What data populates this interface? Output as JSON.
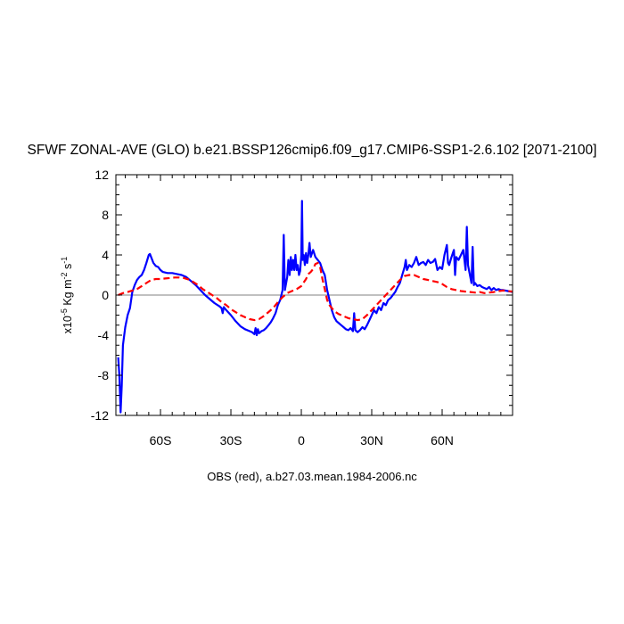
{
  "title": "SFWF ZONAL-AVE (GLO) b.e21.BSSP126cmip6.f09_g17.CMIP6-SSP1-2.6.102 [2071-2100]",
  "footer": "OBS (red), a.b27.03.mean.1984-2006.nc",
  "chart_data": {
    "type": "line",
    "title": "SFWF ZONAL-AVE (GLO) b.e21.BSSP126cmip6.f09_g17.CMIP6-SSP1-2.6.102 [2071-2100]",
    "ylabel": {
      "prefix": "x10",
      "exponent": "-5",
      "units": "Kg m",
      "units_exp": "-2",
      "units_tail": "s",
      "units_tail_exp": "-1"
    },
    "xlim": [
      -79,
      90
    ],
    "ylim": [
      -12,
      12
    ],
    "x_ticks": [
      {
        "value": -60,
        "label": "60S"
      },
      {
        "value": -30,
        "label": "30S"
      },
      {
        "value": 0,
        "label": "0"
      },
      {
        "value": 30,
        "label": "30N"
      },
      {
        "value": 60,
        "label": "60N"
      }
    ],
    "y_ticks": [
      {
        "value": 12,
        "label": "12"
      },
      {
        "value": 8,
        "label": "8"
      },
      {
        "value": 4,
        "label": "4"
      },
      {
        "value": 0,
        "label": "0"
      },
      {
        "value": -4,
        "label": "-4"
      },
      {
        "value": -8,
        "label": "-8"
      },
      {
        "value": -12,
        "label": "-12"
      }
    ],
    "zero_line": true,
    "series": [
      {
        "color": "#0000ff",
        "dash": "solid",
        "points": [
          [
            -78,
            -6.2
          ],
          [
            -77.5,
            -8.0
          ],
          [
            -77,
            -11.7
          ],
          [
            -76.5,
            -9.0
          ],
          [
            -76,
            -5.0
          ],
          [
            -75,
            -3.2
          ],
          [
            -74,
            -2.0
          ],
          [
            -73,
            -1.3
          ],
          [
            -72,
            0.3
          ],
          [
            -71,
            1.0
          ],
          [
            -70,
            1.5
          ],
          [
            -69,
            1.8
          ],
          [
            -68,
            2.0
          ],
          [
            -67,
            2.5
          ],
          [
            -66,
            3.2
          ],
          [
            -65,
            4.0
          ],
          [
            -64.5,
            4.1
          ],
          [
            -64,
            3.8
          ],
          [
            -63,
            3.2
          ],
          [
            -62,
            2.9
          ],
          [
            -61,
            2.8
          ],
          [
            -60,
            2.5
          ],
          [
            -59,
            2.3
          ],
          [
            -57,
            2.2
          ],
          [
            -55,
            2.2
          ],
          [
            -53,
            2.1
          ],
          [
            -51,
            2.0
          ],
          [
            -49,
            1.8
          ],
          [
            -47,
            1.4
          ],
          [
            -45,
            1.0
          ],
          [
            -43,
            0.5
          ],
          [
            -41,
            0.0
          ],
          [
            -39,
            -0.4
          ],
          [
            -37,
            -0.8
          ],
          [
            -35,
            -1.1
          ],
          [
            -34,
            -1.3
          ],
          [
            -33.5,
            -1.8
          ],
          [
            -33,
            -1.2
          ],
          [
            -32,
            -1.5
          ],
          [
            -30,
            -2.0
          ],
          [
            -28,
            -2.6
          ],
          [
            -26,
            -3.1
          ],
          [
            -24,
            -3.4
          ],
          [
            -22,
            -3.6
          ],
          [
            -21,
            -3.7
          ],
          [
            -20,
            -3.9
          ],
          [
            -19.5,
            -3.3
          ],
          [
            -19,
            -4.0
          ],
          [
            -18.5,
            -3.4
          ],
          [
            -18,
            -3.8
          ],
          [
            -17,
            -3.6
          ],
          [
            -16,
            -3.5
          ],
          [
            -15,
            -3.3
          ],
          [
            -14,
            -3.0
          ],
          [
            -13,
            -2.7
          ],
          [
            -12,
            -2.3
          ],
          [
            -11,
            -1.8
          ],
          [
            -10,
            -1.0
          ],
          [
            -9,
            -0.5
          ],
          [
            -8,
            0.5
          ],
          [
            -7.5,
            6.0
          ],
          [
            -7,
            0.5
          ],
          [
            -6,
            1.8
          ],
          [
            -5.5,
            3.5
          ],
          [
            -5,
            2.0
          ],
          [
            -4.5,
            3.8
          ],
          [
            -4,
            2.5
          ],
          [
            -3.5,
            3.5
          ],
          [
            -3,
            2.5
          ],
          [
            -2.5,
            4.0
          ],
          [
            -2,
            2.5
          ],
          [
            -1.5,
            3.0
          ],
          [
            -1,
            2.0
          ],
          [
            -0.5,
            2.4
          ],
          [
            0,
            4.0
          ],
          [
            0.3,
            9.4
          ],
          [
            0.6,
            3.5
          ],
          [
            1,
            4.0
          ],
          [
            1.5,
            3.0
          ],
          [
            2,
            4.2
          ],
          [
            2.5,
            3.2
          ],
          [
            3,
            4.0
          ],
          [
            3.5,
            5.2
          ],
          [
            4,
            3.8
          ],
          [
            5,
            4.5
          ],
          [
            6,
            3.8
          ],
          [
            7,
            3.5
          ],
          [
            8,
            3.2
          ],
          [
            9,
            2.5
          ],
          [
            10,
            2.0
          ],
          [
            11,
            0.5
          ],
          [
            12,
            -0.5
          ],
          [
            13,
            -1.5
          ],
          [
            14,
            -2.2
          ],
          [
            15,
            -2.6
          ],
          [
            16,
            -2.8
          ],
          [
            17,
            -3.0
          ],
          [
            18,
            -3.2
          ],
          [
            19,
            -3.4
          ],
          [
            20,
            -3.5
          ],
          [
            21,
            -3.3
          ],
          [
            22,
            -3.6
          ],
          [
            22.5,
            -1.8
          ],
          [
            23,
            -3.5
          ],
          [
            24,
            -3.7
          ],
          [
            25,
            -3.5
          ],
          [
            26,
            -3.2
          ],
          [
            27,
            -3.4
          ],
          [
            28,
            -3.0
          ],
          [
            29,
            -2.5
          ],
          [
            30,
            -2.0
          ],
          [
            31,
            -1.5
          ],
          [
            32,
            -1.8
          ],
          [
            33,
            -1.2
          ],
          [
            34,
            -1.5
          ],
          [
            35,
            -0.8
          ],
          [
            36,
            -1.0
          ],
          [
            37,
            -0.5
          ],
          [
            38,
            -0.3
          ],
          [
            40,
            0.3
          ],
          [
            41,
            0.8
          ],
          [
            42,
            1.2
          ],
          [
            43,
            2.0
          ],
          [
            44,
            2.8
          ],
          [
            44.5,
            3.5
          ],
          [
            45,
            2.5
          ],
          [
            46,
            3.0
          ],
          [
            47,
            2.8
          ],
          [
            48,
            3.2
          ],
          [
            49,
            3.8
          ],
          [
            50,
            3.0
          ],
          [
            51,
            3.2
          ],
          [
            52,
            3.3
          ],
          [
            53,
            3.0
          ],
          [
            54,
            3.5
          ],
          [
            55,
            3.2
          ],
          [
            56,
            3.3
          ],
          [
            57,
            3.6
          ],
          [
            58,
            2.5
          ],
          [
            59,
            2.8
          ],
          [
            60,
            2.6
          ],
          [
            61,
            4.0
          ],
          [
            62,
            5.0
          ],
          [
            62.5,
            3.2
          ],
          [
            63,
            3.0
          ],
          [
            64,
            3.8
          ],
          [
            65,
            4.5
          ],
          [
            65.5,
            2.0
          ],
          [
            66,
            3.8
          ],
          [
            67,
            3.5
          ],
          [
            68,
            4.0
          ],
          [
            69,
            4.5
          ],
          [
            70,
            2.5
          ],
          [
            70.5,
            6.8
          ],
          [
            71,
            3.0
          ],
          [
            72,
            1.8
          ],
          [
            72.5,
            1.2
          ],
          [
            73,
            4.8
          ],
          [
            73.5,
            1.0
          ],
          [
            74,
            1.2
          ],
          [
            75,
            0.9
          ],
          [
            76,
            1.0
          ],
          [
            77,
            0.8
          ],
          [
            78,
            0.7
          ],
          [
            79,
            0.6
          ],
          [
            80,
            0.8
          ],
          [
            81,
            0.5
          ],
          [
            82,
            0.7
          ],
          [
            83,
            0.5
          ],
          [
            84,
            0.6
          ],
          [
            85,
            0.5
          ],
          [
            86,
            0.5
          ],
          [
            88,
            0.4
          ],
          [
            90,
            0.3
          ]
        ]
      },
      {
        "color": "#ff0000",
        "dash": "dashed",
        "points": [
          [
            -78,
            0.0
          ],
          [
            -76,
            0.2
          ],
          [
            -74,
            0.3
          ],
          [
            -72,
            0.45
          ],
          [
            -70,
            0.6
          ],
          [
            -68,
            0.9
          ],
          [
            -66,
            1.2
          ],
          [
            -64,
            1.5
          ],
          [
            -62,
            1.6
          ],
          [
            -60,
            1.6
          ],
          [
            -58,
            1.65
          ],
          [
            -56,
            1.7
          ],
          [
            -54,
            1.75
          ],
          [
            -52,
            1.75
          ],
          [
            -50,
            1.7
          ],
          [
            -48,
            1.55
          ],
          [
            -46,
            1.3
          ],
          [
            -44,
            1.0
          ],
          [
            -42,
            0.6
          ],
          [
            -40,
            0.3
          ],
          [
            -38,
            0.0
          ],
          [
            -36,
            -0.3
          ],
          [
            -34,
            -0.7
          ],
          [
            -32,
            -1.0
          ],
          [
            -30,
            -1.4
          ],
          [
            -28,
            -1.7
          ],
          [
            -26,
            -2.0
          ],
          [
            -24,
            -2.2
          ],
          [
            -22,
            -2.4
          ],
          [
            -20,
            -2.5
          ],
          [
            -18,
            -2.4
          ],
          [
            -16,
            -2.1
          ],
          [
            -14,
            -1.7
          ],
          [
            -12,
            -1.3
          ],
          [
            -10,
            -0.7
          ],
          [
            -8,
            -0.2
          ],
          [
            -6,
            0.2
          ],
          [
            -4,
            0.4
          ],
          [
            -2,
            0.6
          ],
          [
            0,
            0.9
          ],
          [
            2,
            1.6
          ],
          [
            3,
            2.1
          ],
          [
            4,
            2.3
          ],
          [
            5,
            2.6
          ],
          [
            6,
            3.1
          ],
          [
            7,
            3.2
          ],
          [
            8,
            2.8
          ],
          [
            9,
            1.6
          ],
          [
            10,
            0.6
          ],
          [
            11,
            -0.5
          ],
          [
            12,
            -1.0
          ],
          [
            14,
            -1.6
          ],
          [
            16,
            -1.9
          ],
          [
            18,
            -2.1
          ],
          [
            20,
            -2.3
          ],
          [
            22,
            -2.4
          ],
          [
            24,
            -2.5
          ],
          [
            26,
            -2.4
          ],
          [
            28,
            -2.0
          ],
          [
            30,
            -1.5
          ],
          [
            32,
            -1.0
          ],
          [
            34,
            -0.5
          ],
          [
            36,
            0.0
          ],
          [
            38,
            0.5
          ],
          [
            40,
            1.0
          ],
          [
            42,
            1.5
          ],
          [
            44,
            1.9
          ],
          [
            46,
            2.0
          ],
          [
            48,
            2.0
          ],
          [
            50,
            1.8
          ],
          [
            52,
            1.6
          ],
          [
            54,
            1.5
          ],
          [
            56,
            1.4
          ],
          [
            58,
            1.3
          ],
          [
            60,
            1.1
          ],
          [
            62,
            0.8
          ],
          [
            64,
            0.6
          ],
          [
            66,
            0.5
          ],
          [
            68,
            0.4
          ],
          [
            70,
            0.35
          ],
          [
            72,
            0.3
          ],
          [
            74,
            0.25
          ],
          [
            76,
            0.3
          ],
          [
            78,
            0.2
          ],
          [
            80,
            0.25
          ],
          [
            82,
            0.3
          ],
          [
            84,
            0.4
          ],
          [
            86,
            0.45
          ],
          [
            88,
            0.4
          ],
          [
            90,
            0.35
          ]
        ]
      }
    ]
  }
}
